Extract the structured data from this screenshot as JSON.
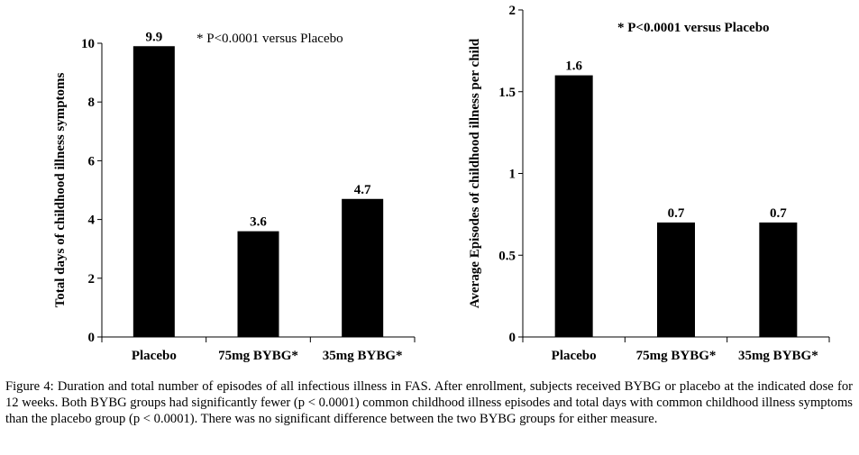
{
  "chart_data": [
    {
      "type": "bar",
      "categories": [
        "Placebo",
        "75mg BYBG*",
        "35mg BYBG*"
      ],
      "values": [
        9.9,
        3.6,
        4.7
      ],
      "data_labels": [
        "9.9",
        "3.6",
        "4.7"
      ],
      "annotation": "* P<0.0001 versus Placebo",
      "title": "",
      "xlabel": "",
      "ylabel": "Total days of childhood illness symptoms",
      "ylim": [
        0,
        10
      ],
      "yticks": [
        0,
        2,
        4,
        6,
        8,
        10
      ],
      "ytick_labels": [
        "0",
        "2",
        "4",
        "6",
        "8",
        "10"
      ],
      "bar_color": "#000000",
      "grid": false
    },
    {
      "type": "bar",
      "categories": [
        "Placebo",
        "75mg BYBG*",
        "35mg BYBG*"
      ],
      "values": [
        1.6,
        0.7,
        0.7
      ],
      "data_labels": [
        "1.6",
        "0.7",
        "0.7"
      ],
      "annotation": "* P<0.0001 versus Placebo",
      "title": "",
      "xlabel": "",
      "ylabel": "Average Episodes of childhood illness per child",
      "ylim": [
        0,
        2
      ],
      "yticks": [
        0,
        0.5,
        1,
        1.5,
        2
      ],
      "ytick_labels": [
        "0",
        "0.5",
        "1",
        "1.5",
        "2"
      ],
      "bar_color": "#000000",
      "grid": false
    }
  ],
  "caption": {
    "label": "Figure 4:",
    "text": "Duration and total number of episodes of all infectious illness in FAS. After enrollment, subjects received BYBG or placebo at the indicated dose for 12 weeks. Both BYBG groups had significantly fewer (p < 0.0001) common childhood illness episodes and total days with common childhood illness symptoms than the placebo group (p < 0.0001). There was no significant difference between the two BYBG groups for either measure."
  }
}
